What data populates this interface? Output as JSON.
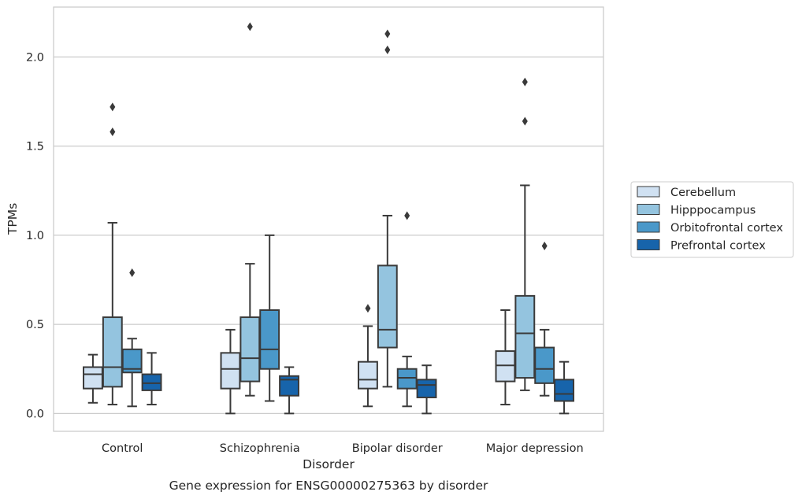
{
  "caption": "Gene expression for ENSG00000275363 by disorder",
  "chart_data": {
    "type": "box",
    "xlabel": "Disorder",
    "ylabel": "TPMs",
    "ylim": [
      -0.1,
      2.28
    ],
    "yticks": [
      "0.0",
      "0.5",
      "1.0",
      "1.5",
      "2.0"
    ],
    "grid": true,
    "legend_position": "right",
    "categories": [
      "Control",
      "Schizophrenia",
      "Bipolar disorder",
      "Major depression"
    ],
    "series": [
      {
        "name": "Cerebellum",
        "color": "#d0e1f2",
        "boxes": [
          {
            "whisker_low": 0.06,
            "q1": 0.14,
            "median": 0.22,
            "q3": 0.26,
            "whisker_high": 0.33,
            "outliers": []
          },
          {
            "whisker_low": 0.0,
            "q1": 0.14,
            "median": 0.25,
            "q3": 0.34,
            "whisker_high": 0.47,
            "outliers": []
          },
          {
            "whisker_low": 0.04,
            "q1": 0.14,
            "median": 0.19,
            "q3": 0.29,
            "whisker_high": 0.49,
            "outliers": [
              0.59
            ]
          },
          {
            "whisker_low": 0.05,
            "q1": 0.18,
            "median": 0.27,
            "q3": 0.35,
            "whisker_high": 0.58,
            "outliers": []
          }
        ]
      },
      {
        "name": "Hipppocampus",
        "color": "#94c4df",
        "boxes": [
          {
            "whisker_low": 0.05,
            "q1": 0.15,
            "median": 0.26,
            "q3": 0.54,
            "whisker_high": 1.07,
            "outliers": [
              1.58,
              1.72
            ]
          },
          {
            "whisker_low": 0.1,
            "q1": 0.18,
            "median": 0.31,
            "q3": 0.54,
            "whisker_high": 0.84,
            "outliers": [
              2.17
            ]
          },
          {
            "whisker_low": 0.15,
            "q1": 0.37,
            "median": 0.47,
            "q3": 0.83,
            "whisker_high": 1.11,
            "outliers": [
              2.04,
              2.13
            ]
          },
          {
            "whisker_low": 0.13,
            "q1": 0.2,
            "median": 0.45,
            "q3": 0.66,
            "whisker_high": 1.28,
            "outliers": [
              1.64,
              1.86
            ]
          }
        ]
      },
      {
        "name": "Orbitofrontal cortex",
        "color": "#4a98c9",
        "boxes": [
          {
            "whisker_low": 0.04,
            "q1": 0.23,
            "median": 0.25,
            "q3": 0.36,
            "whisker_high": 0.42,
            "outliers": [
              0.79
            ]
          },
          {
            "whisker_low": 0.07,
            "q1": 0.25,
            "median": 0.36,
            "q3": 0.58,
            "whisker_high": 1.0,
            "outliers": []
          },
          {
            "whisker_low": 0.04,
            "q1": 0.14,
            "median": 0.2,
            "q3": 0.25,
            "whisker_high": 0.32,
            "outliers": [
              1.11
            ]
          },
          {
            "whisker_low": 0.1,
            "q1": 0.17,
            "median": 0.25,
            "q3": 0.37,
            "whisker_high": 0.47,
            "outliers": [
              0.94
            ]
          }
        ]
      },
      {
        "name": "Prefrontal cortex",
        "color": "#1764ab",
        "boxes": [
          {
            "whisker_low": 0.05,
            "q1": 0.13,
            "median": 0.17,
            "q3": 0.22,
            "whisker_high": 0.34,
            "outliers": []
          },
          {
            "whisker_low": 0.0,
            "q1": 0.1,
            "median": 0.19,
            "q3": 0.21,
            "whisker_high": 0.26,
            "outliers": []
          },
          {
            "whisker_low": 0.0,
            "q1": 0.09,
            "median": 0.16,
            "q3": 0.19,
            "whisker_high": 0.27,
            "outliers": []
          },
          {
            "whisker_low": 0.0,
            "q1": 0.07,
            "median": 0.11,
            "q3": 0.19,
            "whisker_high": 0.29,
            "outliers": []
          }
        ]
      }
    ]
  }
}
